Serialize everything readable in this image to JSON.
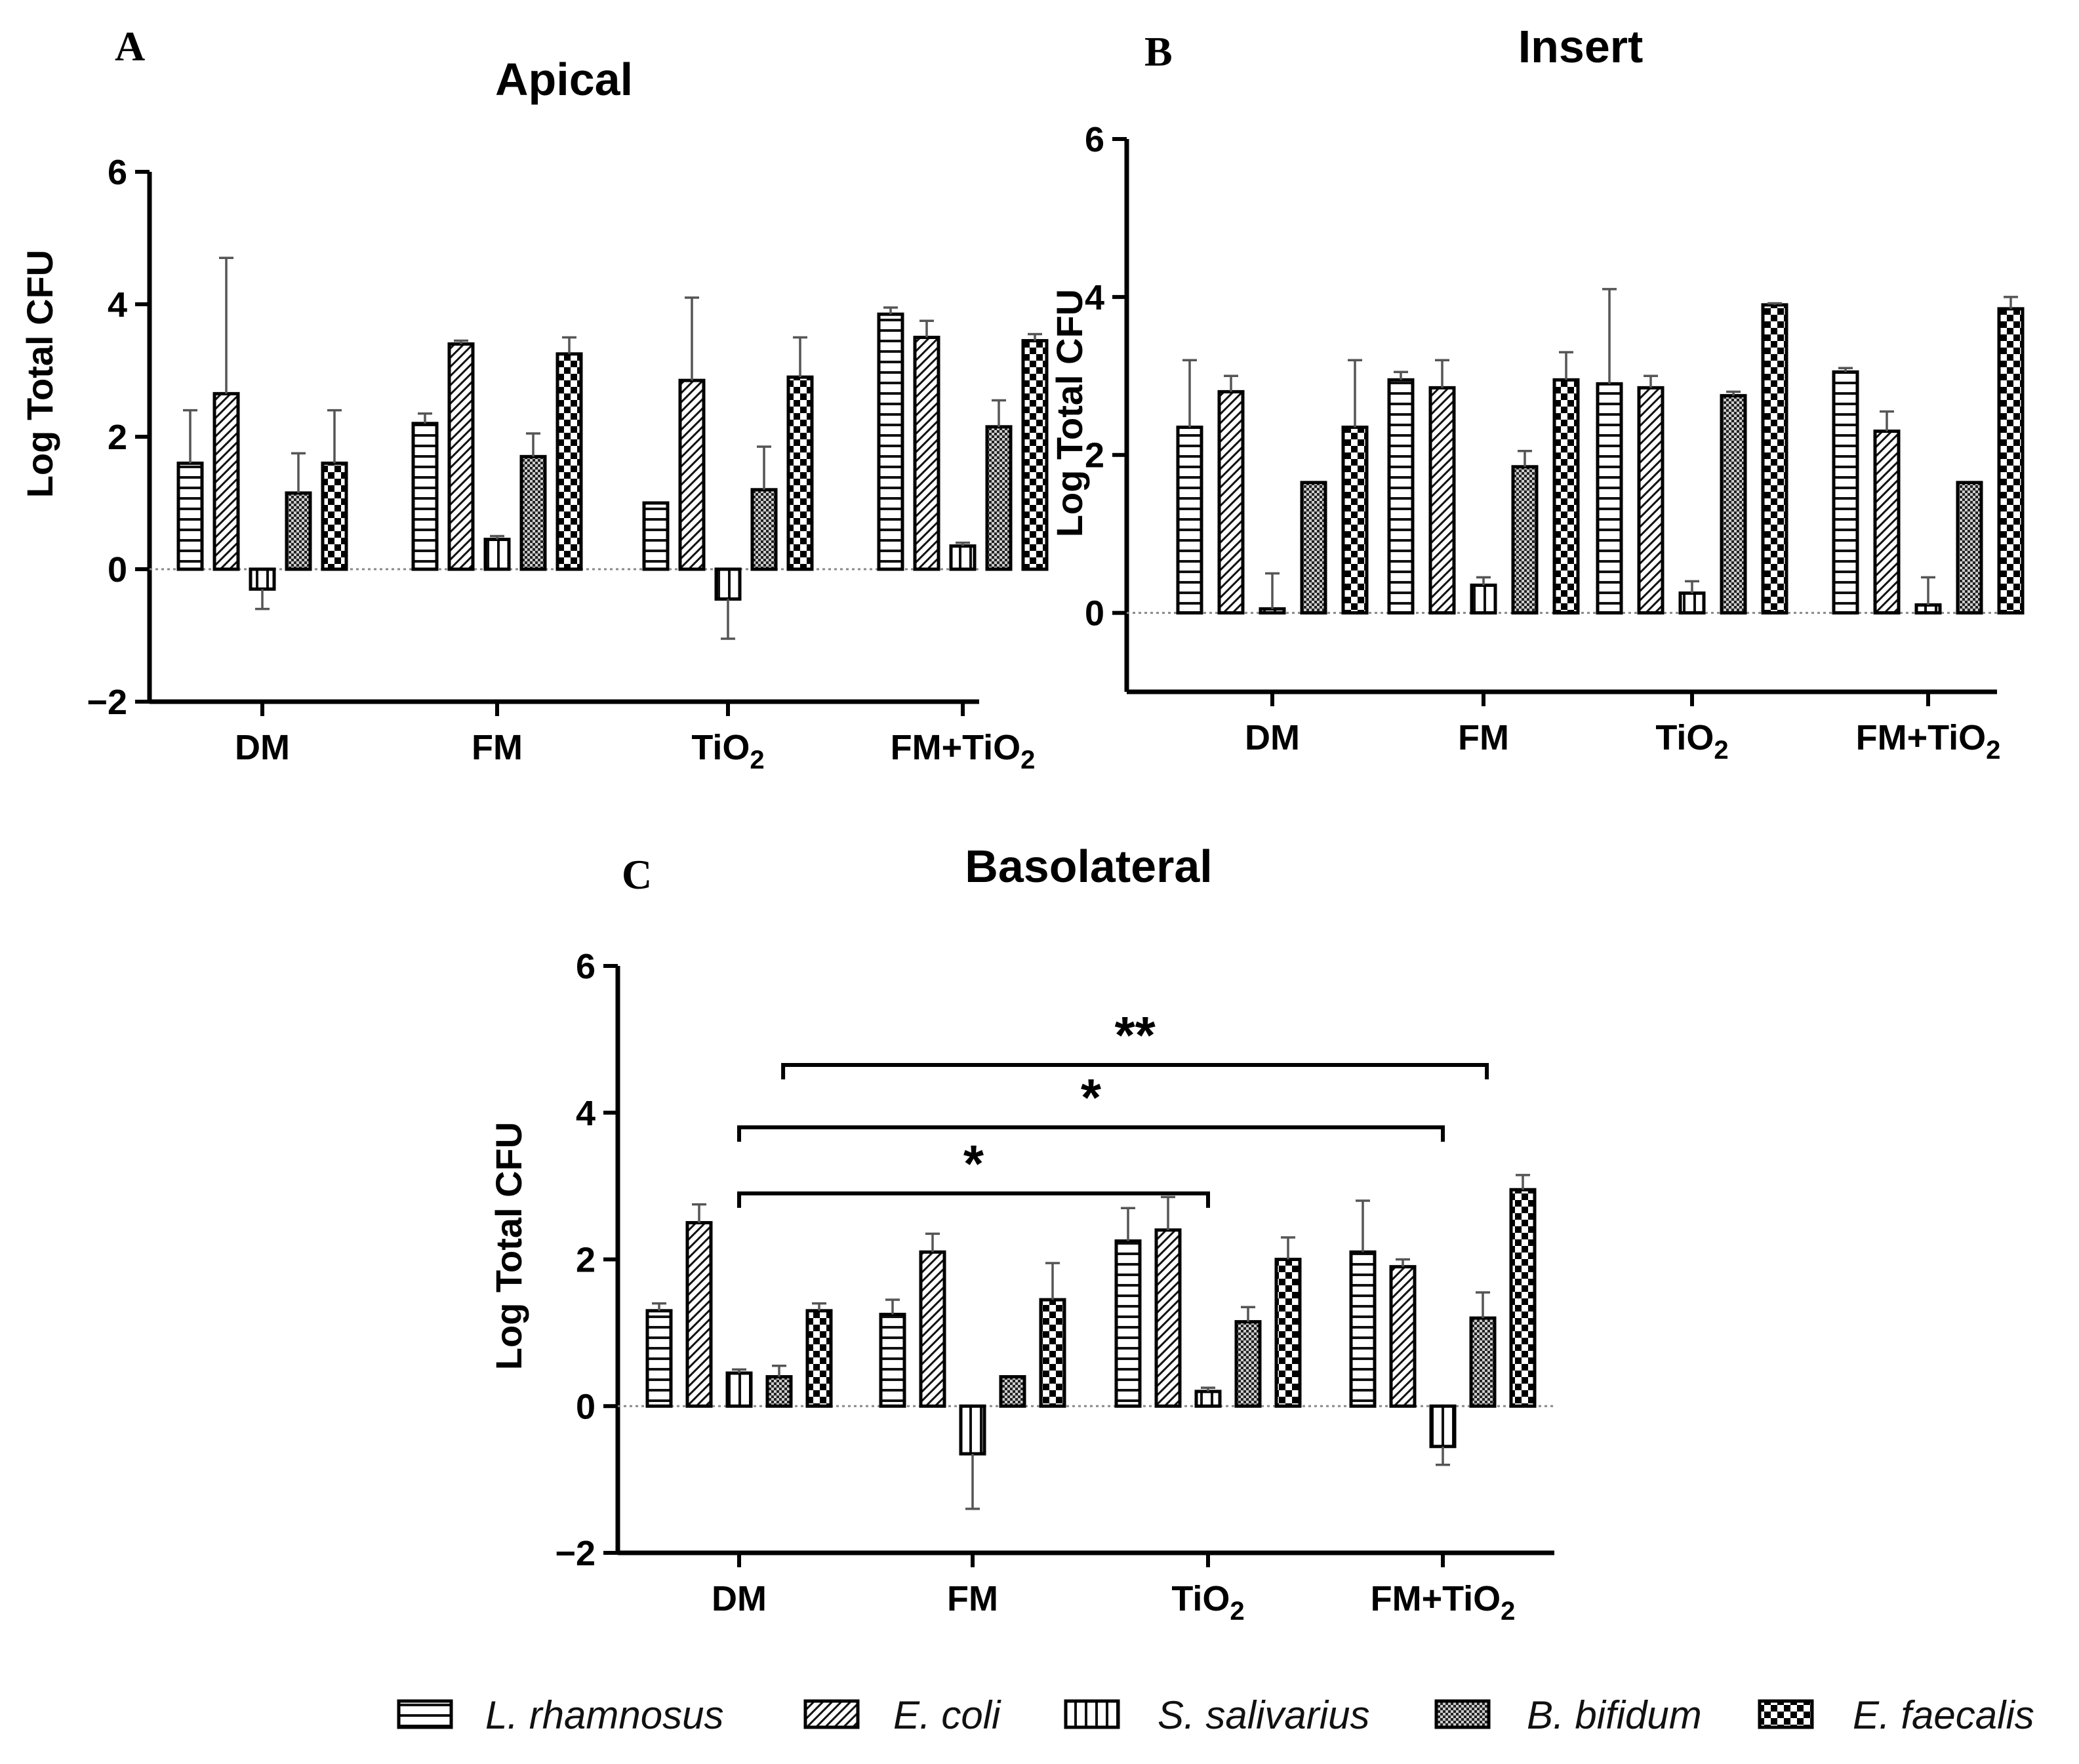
{
  "legend": [
    {
      "name": "L. rhamnosus",
      "pattern": "pat-horiz"
    },
    {
      "name": "E. coli",
      "pattern": "pat-diag"
    },
    {
      "name": "S. salivarius",
      "pattern": "pat-vert"
    },
    {
      "name": "B. bifidum",
      "pattern": "pat-dots"
    },
    {
      "name": "E. faecalis",
      "pattern": "pat-check"
    }
  ],
  "colors": {
    "bar_outline": "#000000",
    "error_bar": "#555555",
    "dark": "#000000"
  },
  "chart_data": [
    {
      "panel": "A",
      "type": "bar",
      "title": "Apical",
      "ylabel": "Log Total CFU",
      "ylim": [
        -2,
        6
      ],
      "yticks": [
        "−2",
        "0",
        "2",
        "4",
        "6"
      ],
      "category_labels": [
        {
          "main": "DM",
          "sub": ""
        },
        {
          "main": "FM",
          "sub": ""
        },
        {
          "main": "TiO",
          "sub": "2"
        },
        {
          "main": "FM+TiO",
          "sub": "2"
        }
      ],
      "series": [
        {
          "name": "L. rhamnosus",
          "values": [
            1.6,
            2.2,
            1.0,
            3.85
          ],
          "errors": [
            0.8,
            0.15,
            0,
            0.1
          ]
        },
        {
          "name": "E. coli",
          "values": [
            2.65,
            3.4,
            2.85,
            3.5
          ],
          "errors": [
            2.05,
            0.05,
            1.25,
            0.25
          ]
        },
        {
          "name": "S. salivarius",
          "values": [
            -0.3,
            0.45,
            -0.45,
            0.35
          ],
          "errors": [
            0.3,
            0.05,
            0.6,
            0.05
          ]
        },
        {
          "name": "B. bifidum",
          "values": [
            1.15,
            1.7,
            1.2,
            2.15
          ],
          "errors": [
            0.6,
            0.35,
            0.65,
            0.4
          ]
        },
        {
          "name": "E. faecalis",
          "values": [
            1.6,
            3.25,
            2.9,
            3.45
          ],
          "errors": [
            0.8,
            0.25,
            0.6,
            0.1
          ]
        }
      ],
      "significance": []
    },
    {
      "panel": "B",
      "type": "bar",
      "title": "Insert",
      "ylabel": "Log Total CFU",
      "ylim": [
        -1,
        6
      ],
      "yticks": [
        "0",
        "2",
        "4",
        "6"
      ],
      "category_labels": [
        {
          "main": "DM",
          "sub": ""
        },
        {
          "main": "FM",
          "sub": ""
        },
        {
          "main": "TiO",
          "sub": "2"
        },
        {
          "main": "FM+TiO",
          "sub": "2"
        }
      ],
      "series": [
        {
          "name": "L. rhamnosus",
          "values": [
            2.35,
            2.95,
            2.9,
            3.05
          ],
          "errors": [
            0.85,
            0.1,
            1.2,
            0.05
          ]
        },
        {
          "name": "E. coli",
          "values": [
            2.8,
            2.85,
            2.85,
            2.3
          ],
          "errors": [
            0.2,
            0.35,
            0.15,
            0.25
          ]
        },
        {
          "name": "S. salivarius",
          "values": [
            0.05,
            0.35,
            0.25,
            0.1
          ],
          "errors": [
            0.45,
            0.1,
            0.15,
            0.35
          ]
        },
        {
          "name": "B. bifidum",
          "values": [
            1.65,
            1.85,
            2.75,
            1.65
          ],
          "errors": [
            0,
            0.2,
            0.05,
            0
          ]
        },
        {
          "name": "E. faecalis",
          "values": [
            2.35,
            2.95,
            3.9,
            3.85
          ],
          "errors": [
            0.85,
            0.35,
            0.02,
            0.15
          ]
        }
      ],
      "significance": []
    },
    {
      "panel": "C",
      "type": "bar",
      "title": "Basolateral",
      "ylabel": "Log Total CFU",
      "ylim": [
        -2,
        6
      ],
      "yticks": [
        "−2",
        "0",
        "2",
        "4",
        "6"
      ],
      "category_labels": [
        {
          "main": "DM",
          "sub": ""
        },
        {
          "main": "FM",
          "sub": ""
        },
        {
          "main": "TiO",
          "sub": "2"
        },
        {
          "main": "FM+TiO",
          "sub": "2"
        }
      ],
      "series": [
        {
          "name": "L. rhamnosus",
          "values": [
            1.3,
            1.25,
            2.25,
            2.1
          ],
          "errors": [
            0.1,
            0.2,
            0.45,
            0.7
          ]
        },
        {
          "name": "E. coli",
          "values": [
            2.5,
            2.1,
            2.4,
            1.9
          ],
          "errors": [
            0.25,
            0.25,
            0.45,
            0.1
          ]
        },
        {
          "name": "S. salivarius",
          "values": [
            0.45,
            -0.65,
            0.2,
            -0.55
          ],
          "errors": [
            0.05,
            0.75,
            0.05,
            0.25
          ]
        },
        {
          "name": "B. bifidum",
          "values": [
            0.4,
            0.4,
            1.15,
            1.2
          ],
          "errors": [
            0.15,
            0,
            0.2,
            0.35
          ]
        },
        {
          "name": "E. faecalis",
          "values": [
            1.3,
            1.45,
            2.0,
            2.95
          ],
          "errors": [
            0.1,
            0.5,
            0.3,
            0.2
          ]
        }
      ],
      "significance": [
        {
          "from_category": 0,
          "to_category": 2,
          "y": 2.9,
          "label": "*"
        },
        {
          "from_category": 0,
          "to_category": 3,
          "y": 3.8,
          "label": "*"
        },
        {
          "from_category": 0,
          "from_offset": 1.1,
          "to_category": 3,
          "to_offset": 1.1,
          "y": 4.65,
          "label": "**"
        }
      ]
    }
  ]
}
